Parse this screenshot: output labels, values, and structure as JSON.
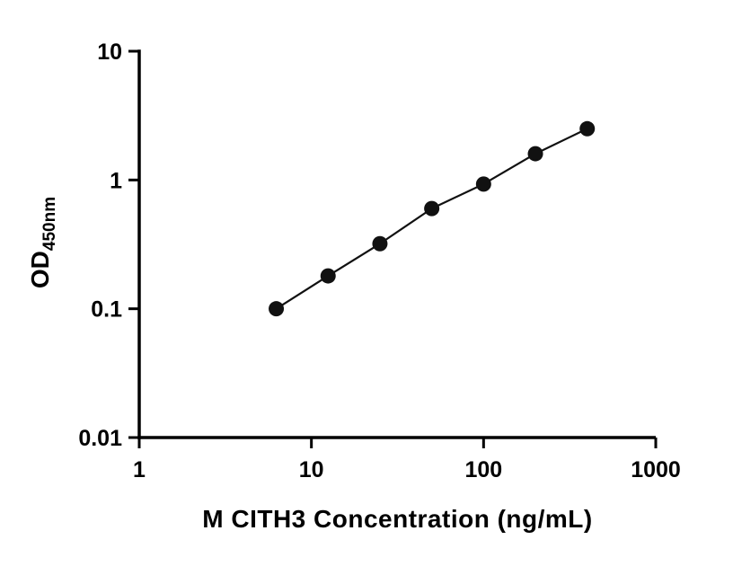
{
  "chart_data": {
    "type": "scatter",
    "title": "",
    "xlabel": "M CITH3 Concentration (ng/mL)",
    "ylabel_main": "OD",
    "ylabel_sub": "450nm",
    "x_scale": "log",
    "y_scale": "log",
    "xlim": [
      1,
      1000
    ],
    "ylim": [
      0.01,
      10
    ],
    "x_ticks": [
      "1",
      "10",
      "100",
      "1000"
    ],
    "y_ticks": [
      "10",
      "1",
      "0.1",
      "0.01"
    ],
    "x": [
      6.25,
      12.5,
      25,
      50,
      100,
      200,
      400
    ],
    "y": [
      0.1,
      0.18,
      0.32,
      0.6,
      0.93,
      1.6,
      2.5
    ],
    "line_color": "#111111",
    "marker_color": "#111111",
    "axis_color": "#000000",
    "grid": "off",
    "legend": "none"
  }
}
